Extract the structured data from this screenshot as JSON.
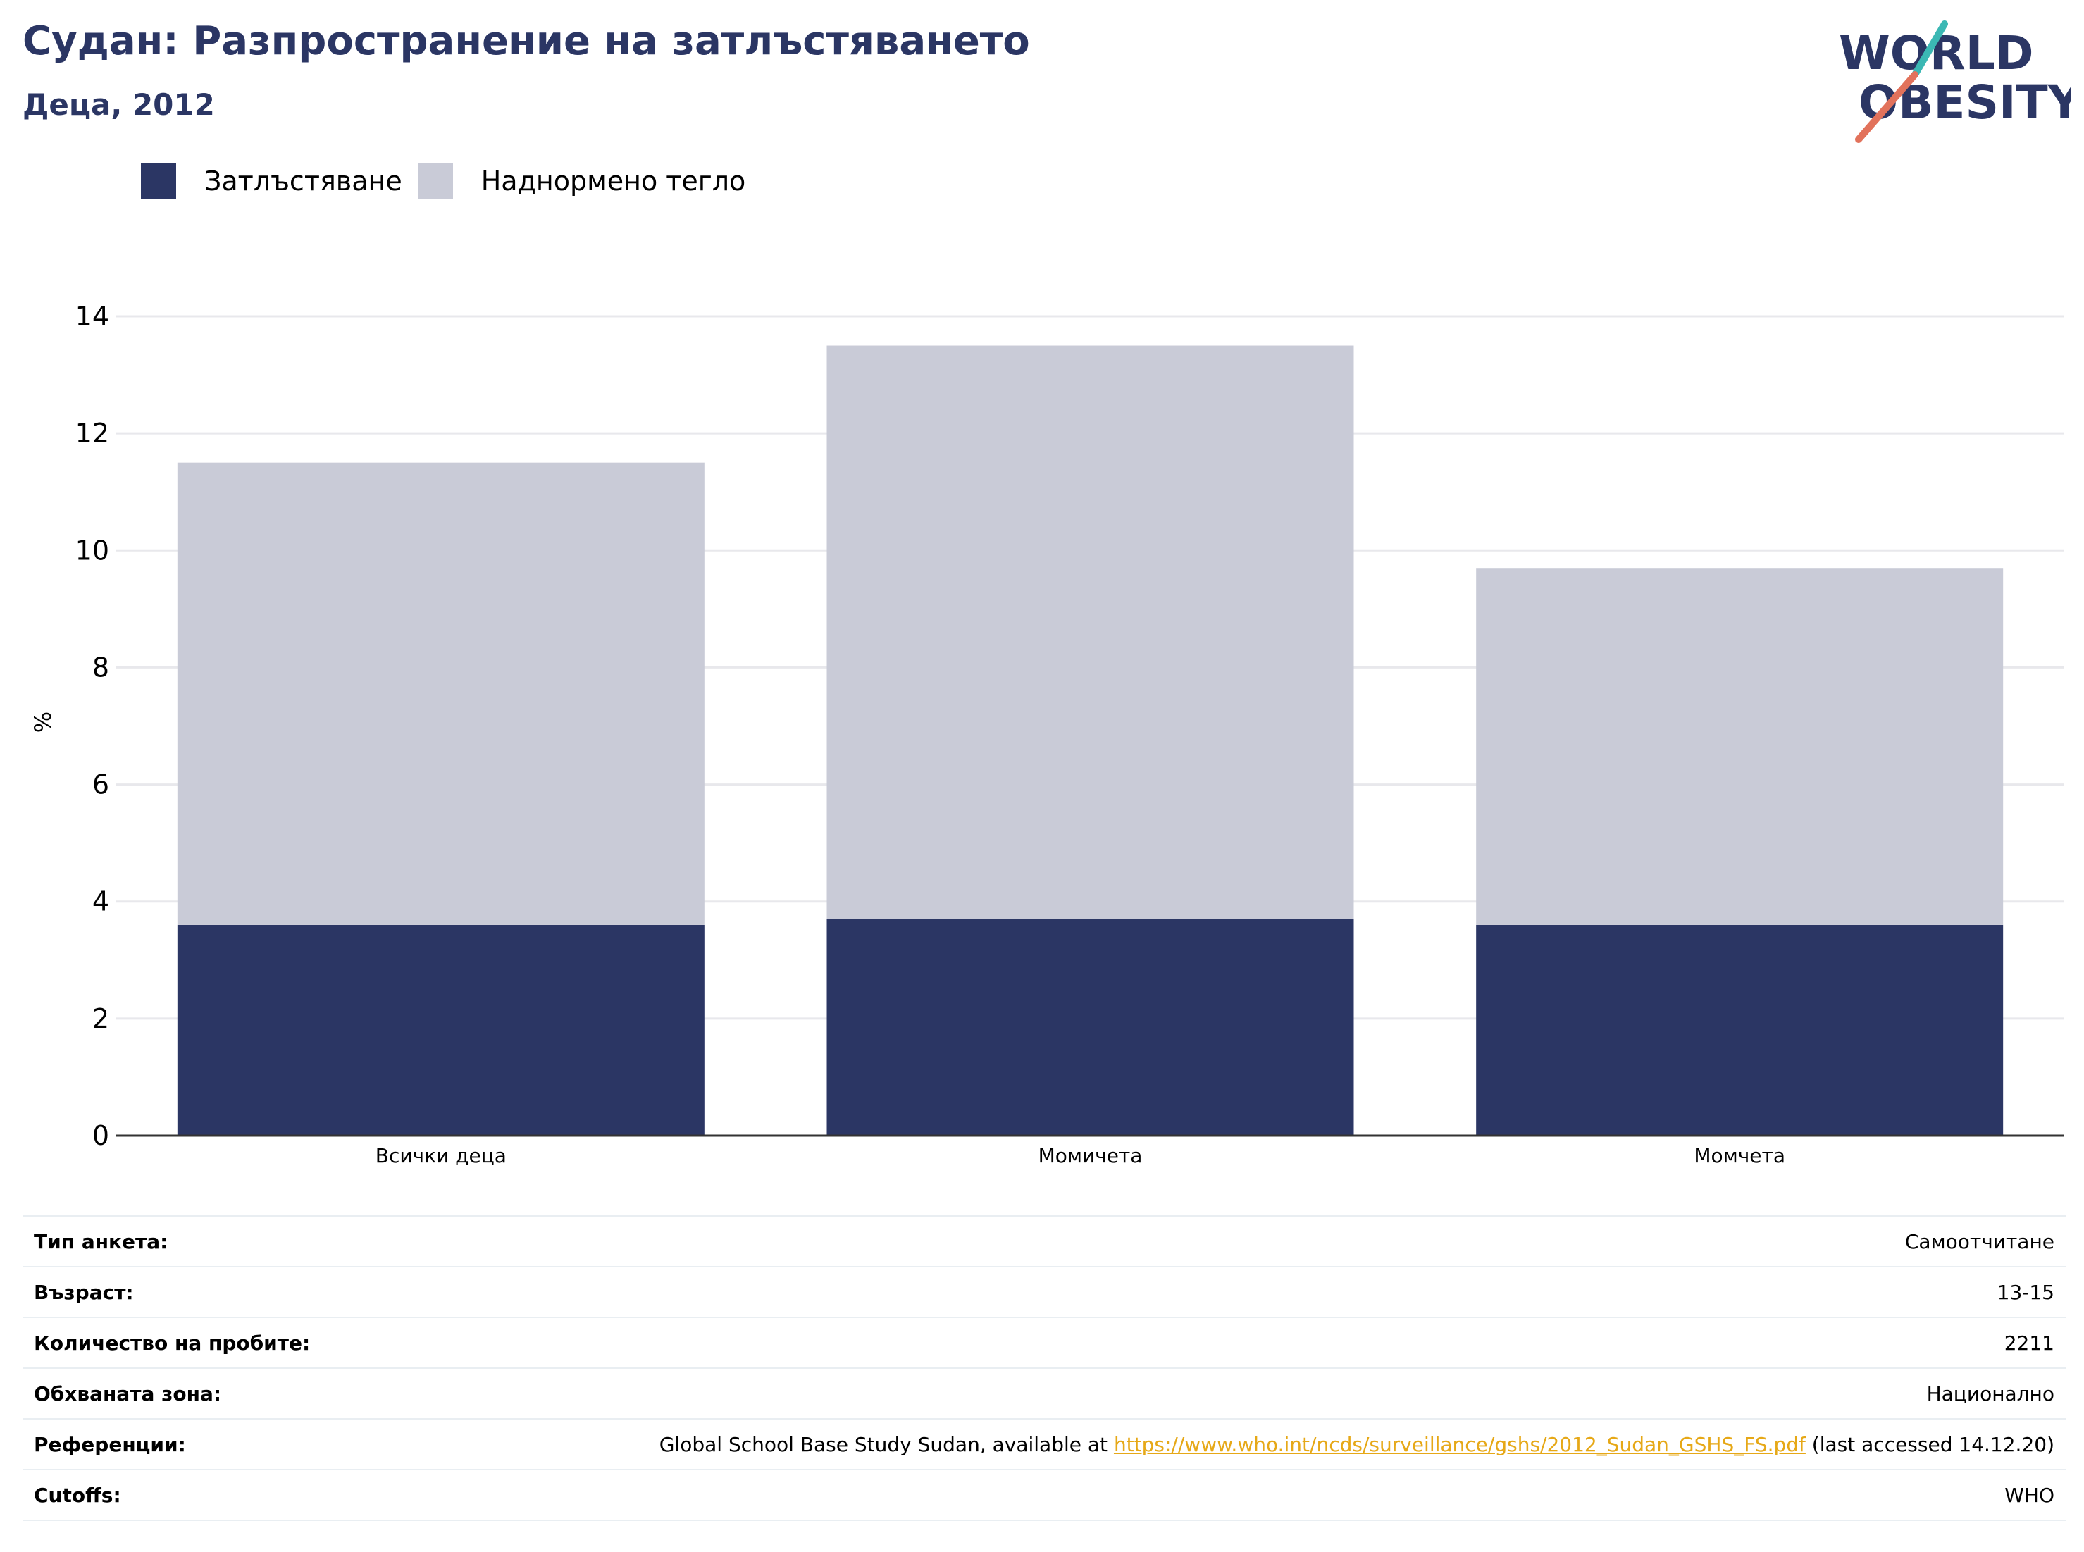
{
  "header": {
    "title": "Судан: Разпространение на затлъстяването",
    "subtitle": "Деца, 2012"
  },
  "logo": {
    "line1": "WORLD",
    "line2": "OBESITY",
    "text_color": "#2b3664",
    "accent_teal": "#3bb8b4",
    "accent_coral": "#e2725b"
  },
  "colors": {
    "obesity": "#2b3664",
    "overweight": "#c9cbd7",
    "grid": "#e8e8ec",
    "axis": "#333333"
  },
  "chart_data": {
    "type": "bar",
    "stacked": true,
    "categories": [
      "Всички деца",
      "Момичета",
      "Момчета"
    ],
    "series": [
      {
        "name": "Затлъстяване",
        "values": [
          3.6,
          3.7,
          3.6
        ]
      },
      {
        "name": "Наднормено тегло",
        "values": [
          7.9,
          9.8,
          6.1
        ]
      }
    ],
    "ylabel": "%",
    "xlabel": "",
    "ylim": [
      0,
      14
    ],
    "yticks": [
      0,
      2,
      4,
      6,
      8,
      10,
      12,
      14
    ],
    "grid": true,
    "legend_position": "top-left"
  },
  "legend": {
    "items": [
      {
        "label": "Затлъстяване",
        "color": "#2b3664"
      },
      {
        "label": "Наднормено тегло",
        "color": "#c9cbd7"
      }
    ]
  },
  "info": {
    "survey_type_label": "Тип анкета:",
    "survey_type_value": "Самоотчитане",
    "age_label": "Възраст:",
    "age_value": "13-15",
    "sample_label": "Количество на пробите:",
    "sample_value": "2211",
    "area_label": "Обхваната зона:",
    "area_value": "Национално",
    "references_label": "Референции:",
    "references_prefix": "Global School Base Study Sudan, available at ",
    "references_link": "https://www.who.int/ncds/surveillance/gshs/2012_Sudan_GSHS_FS.pdf",
    "references_suffix": " (last accessed 14.12.20)",
    "cutoffs_label": "Cutoffs:",
    "cutoffs_value": "WHO"
  }
}
